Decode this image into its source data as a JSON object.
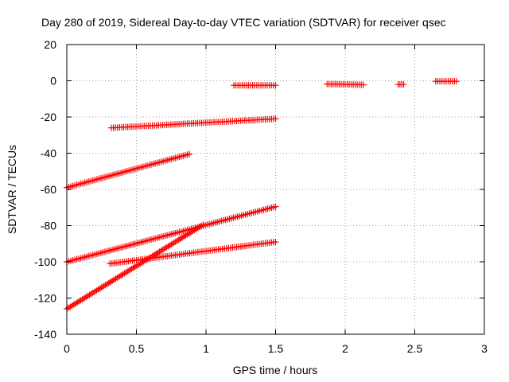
{
  "chart_data": {
    "type": "scatter",
    "title": "Day 280 of 2019, Sidereal Day-to-day VTEC variation (SDTVAR) for receiver qsec",
    "xlabel": "GPS time / hours",
    "ylabel": "SDTVAR / TECUs",
    "xlim": [
      0,
      3
    ],
    "ylim": [
      -140,
      20
    ],
    "x_ticks": [
      0,
      0.5,
      1,
      1.5,
      2,
      2.5,
      3
    ],
    "x_tick_labels": [
      "0",
      "0.5",
      "1",
      "1.5",
      "2",
      "2.5",
      "3"
    ],
    "y_ticks": [
      -140,
      -120,
      -100,
      -80,
      -60,
      -40,
      -20,
      0,
      20
    ],
    "y_tick_labels": [
      "-140",
      "-120",
      "-100",
      "-80",
      "-60",
      "-40",
      "-20",
      "0",
      "20"
    ],
    "grid": true,
    "legend": false,
    "marker": "plus",
    "marker_color": "#ff0000",
    "series": [
      {
        "x": [
          1.2,
          1.5
        ],
        "y": [
          -2.5,
          -2.5
        ]
      },
      {
        "x": [
          1.87,
          2.13
        ],
        "y": [
          -1.8,
          -2.2
        ]
      },
      {
        "x": [
          2.38,
          2.42
        ],
        "y": [
          -2.0,
          -2.0
        ]
      },
      {
        "x": [
          2.65,
          2.8
        ],
        "y": [
          -0.3,
          -0.3
        ]
      },
      {
        "x": [
          0.32,
          1.5
        ],
        "y": [
          -26.0,
          -21.0
        ]
      },
      {
        "x": [
          0.0,
          0.88
        ],
        "y": [
          -59.0,
          -40.5
        ]
      },
      {
        "x": [
          0.0,
          1.5
        ],
        "y": [
          -100.0,
          -69.5
        ]
      },
      {
        "x": [
          0.31,
          1.5
        ],
        "y": [
          -101.0,
          -89.0
        ]
      },
      {
        "x": [
          0.0,
          0.98
        ],
        "y": [
          -126.0,
          -79.5
        ]
      }
    ]
  }
}
